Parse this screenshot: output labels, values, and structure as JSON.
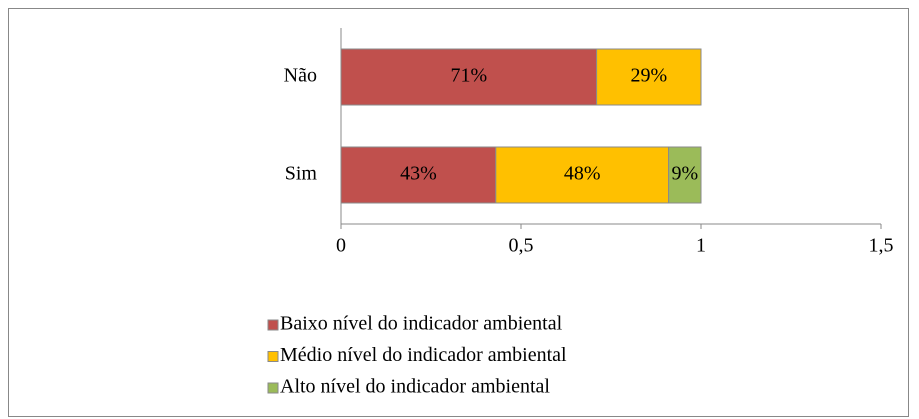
{
  "chart_data": {
    "type": "stacked-bar-horizontal",
    "categories": [
      "Não",
      "Sim"
    ],
    "series": [
      {
        "name": "Baixo nível do indicador ambiental",
        "color": "#c0504d",
        "values": [
          0.71,
          0.43
        ],
        "value_labels": [
          "71%",
          "43%"
        ]
      },
      {
        "name": "Médio nível do indicador ambiental",
        "color": "#ffc000",
        "values": [
          0.29,
          0.48
        ],
        "value_labels": [
          "29%",
          "48%"
        ]
      },
      {
        "name": "Alto nível do indicador ambiental",
        "color": "#9bbb59",
        "values": [
          null,
          0.09
        ],
        "value_labels": [
          null,
          "9%"
        ]
      }
    ],
    "xlim": [
      0,
      1.5
    ],
    "xticks": [
      0,
      {
        "value": 0.5,
        "label": "0,5"
      },
      1,
      {
        "value": 1.5,
        "label": "1,5"
      }
    ],
    "legend": "bottom"
  }
}
